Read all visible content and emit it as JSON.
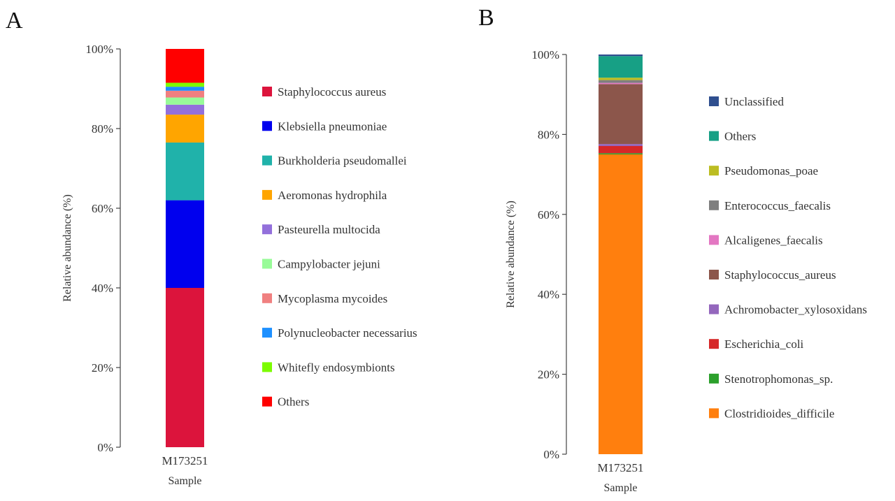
{
  "chart_data": [
    {
      "panel": "A",
      "type": "bar",
      "stacked": true,
      "categories": [
        "M173251"
      ],
      "xlabel": "Sample",
      "ylabel": "Relative abundance (%)",
      "ylim": [
        0,
        100
      ],
      "yticks": [
        "0%",
        "20%",
        "40%",
        "60%",
        "80%",
        "100%"
      ],
      "legend_position": "right",
      "series": [
        {
          "name": "Staphylococcus aureus",
          "color": "#dc143c",
          "values": [
            40
          ]
        },
        {
          "name": "Klebsiella pneumoniae",
          "color": "#0000ee",
          "values": [
            22
          ]
        },
        {
          "name": "Burkholderia pseudomallei",
          "color": "#20b2aa",
          "values": [
            14.5
          ]
        },
        {
          "name": "Aeromonas hydrophila",
          "color": "#ffa500",
          "values": [
            7
          ]
        },
        {
          "name": "Pasteurella multocida",
          "color": "#9370db",
          "values": [
            2.5
          ]
        },
        {
          "name": "Campylobacter jejuni",
          "color": "#98fb98",
          "values": [
            1.8
          ]
        },
        {
          "name": "Mycoplasma mycoides",
          "color": "#f08080",
          "values": [
            1.7
          ]
        },
        {
          "name": "Polynucleobacter necessarius",
          "color": "#1e90ff",
          "values": [
            1.0
          ]
        },
        {
          "name": "Whitefly endosymbionts",
          "color": "#7cfc00",
          "values": [
            1.0
          ]
        },
        {
          "name": "Others",
          "color": "#ff0000",
          "values": [
            8.5
          ]
        }
      ]
    },
    {
      "panel": "B",
      "type": "bar",
      "stacked": true,
      "categories": [
        "M173251"
      ],
      "xlabel": "Sample",
      "ylabel": "Relative abundance (%)",
      "ylim": [
        0,
        100
      ],
      "yticks": [
        "0%",
        "20%",
        "40%",
        "60%",
        "80%",
        "100%"
      ],
      "legend_position": "right",
      "series": [
        {
          "name": "Clostridioides_difficile",
          "color": "#ff7f0e",
          "values": [
            75
          ]
        },
        {
          "name": "Stenotrophomonas_sp.",
          "color": "#2ca02c",
          "values": [
            0.3
          ]
        },
        {
          "name": "Escherichia_coli",
          "color": "#d62728",
          "values": [
            1.8
          ]
        },
        {
          "name": "Achromobacter_xylosoxidans",
          "color": "#9467bd",
          "values": [
            0.5
          ]
        },
        {
          "name": "Staphylococcus_aureus",
          "color": "#8c564b",
          "values": [
            15
          ]
        },
        {
          "name": "Alcaligenes_faecalis",
          "color": "#e377c2",
          "values": [
            0.3
          ]
        },
        {
          "name": "Enterococcus_faecalis",
          "color": "#7f7f7f",
          "values": [
            0.7
          ]
        },
        {
          "name": "Pseudomonas_poae",
          "color": "#bcbd22",
          "values": [
            0.6
          ]
        },
        {
          "name": "Others",
          "color": "#17a085",
          "values": [
            5.4
          ]
        },
        {
          "name": "Unclassified",
          "color": "#2f4f8f",
          "values": [
            0.4
          ]
        }
      ],
      "legend_order": [
        "Unclassified",
        "Others",
        "Pseudomonas_poae",
        "Enterococcus_faecalis",
        "Alcaligenes_faecalis",
        "Staphylococcus_aureus",
        "Achromobacter_xylosoxidans",
        "Escherichia_coli",
        "Stenotrophomonas_sp.",
        "Clostridioides_difficile"
      ]
    }
  ]
}
